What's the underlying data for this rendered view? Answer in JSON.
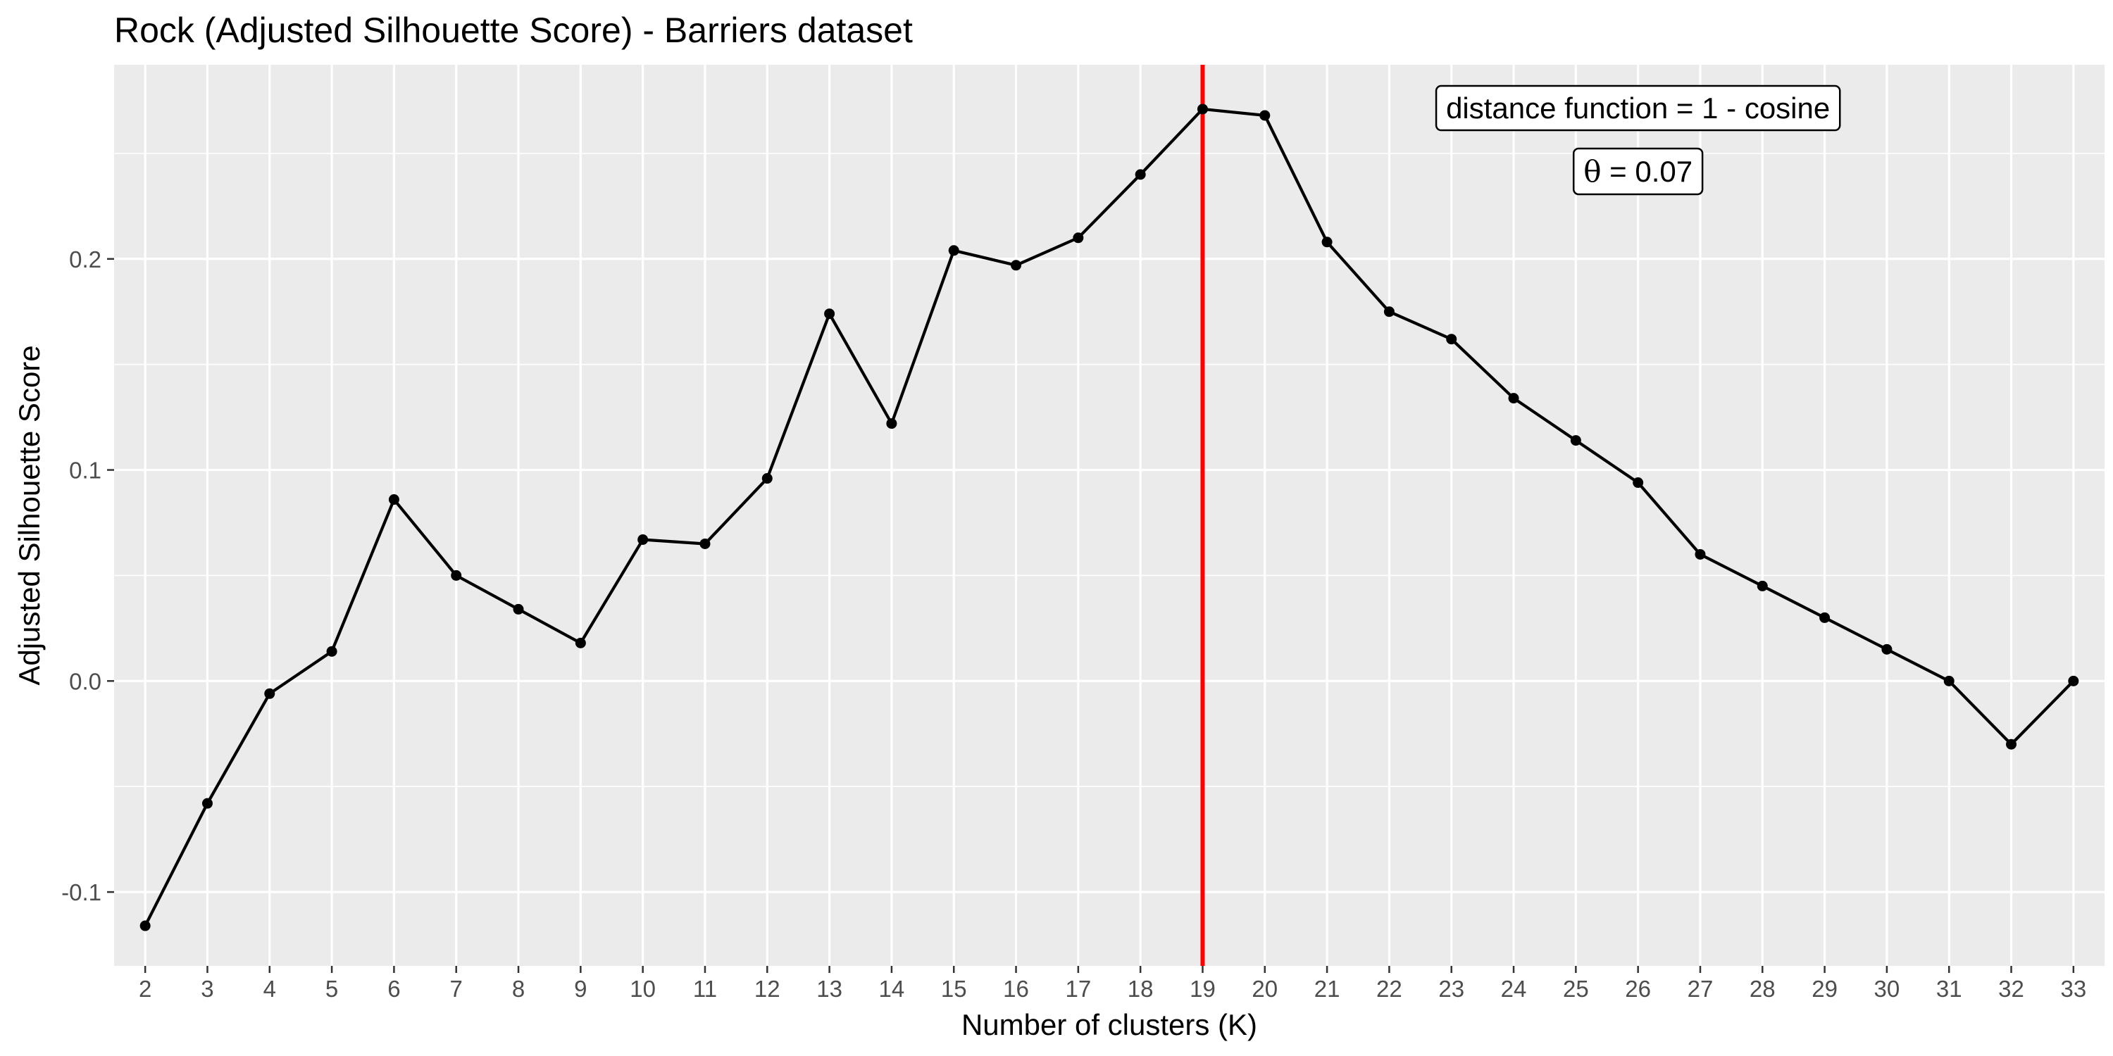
{
  "chart_data": {
    "type": "line",
    "title": "Rock (Adjusted Silhouette Score) - Barriers dataset",
    "xlabel": "Number of clusters (K)",
    "ylabel": "Adjusted Silhouette Score",
    "x": [
      2,
      3,
      4,
      5,
      6,
      7,
      8,
      9,
      10,
      11,
      12,
      13,
      14,
      15,
      16,
      17,
      18,
      19,
      20,
      21,
      22,
      23,
      24,
      25,
      26,
      27,
      28,
      29,
      30,
      31,
      32,
      33
    ],
    "y": [
      -0.116,
      -0.058,
      -0.006,
      0.014,
      0.086,
      0.05,
      0.034,
      0.018,
      0.067,
      0.065,
      0.096,
      0.174,
      0.122,
      0.204,
      0.197,
      0.21,
      0.24,
      0.271,
      0.268,
      0.208,
      0.175,
      0.162,
      0.134,
      0.114,
      0.094,
      0.06,
      0.045,
      0.03,
      0.015,
      0.0,
      -0.03,
      0.0
    ],
    "xlim": [
      1.5,
      33.5
    ],
    "ylim": [
      -0.135,
      0.292
    ],
    "x_ticks": [
      2,
      3,
      4,
      5,
      6,
      7,
      8,
      9,
      10,
      11,
      12,
      13,
      14,
      15,
      16,
      17,
      18,
      19,
      20,
      21,
      22,
      23,
      24,
      25,
      26,
      27,
      28,
      29,
      30,
      31,
      32,
      33
    ],
    "x_tick_labels": [
      "2",
      "3",
      "4",
      "5",
      "6",
      "7",
      "8",
      "9",
      "10",
      "11",
      "12",
      "13",
      "14",
      "15",
      "16",
      "17",
      "18",
      "19",
      "20",
      "21",
      "22",
      "23",
      "24",
      "25",
      "26",
      "27",
      "28",
      "29",
      "30",
      "31",
      "32",
      "33"
    ],
    "y_ticks": [
      -0.1,
      0.0,
      0.1,
      0.2
    ],
    "y_tick_labels": [
      "-0.1",
      "0.0",
      "0.1",
      "0.2"
    ],
    "grid": true,
    "vline": {
      "x": 19,
      "color": "#ff0000"
    },
    "annotations": [
      {
        "text": "distance function = 1 -  cosine",
        "x": 26,
        "y": 0.2713
      },
      {
        "symbol": "θ",
        "text": " = 0.07",
        "x": 26,
        "y": 0.2413
      }
    ],
    "colors": {
      "panel": "#ebebeb",
      "grid_major": "#ffffff",
      "line": "#000000",
      "tick_label": "#4d4d4d",
      "tick_mark": "#333333"
    }
  }
}
